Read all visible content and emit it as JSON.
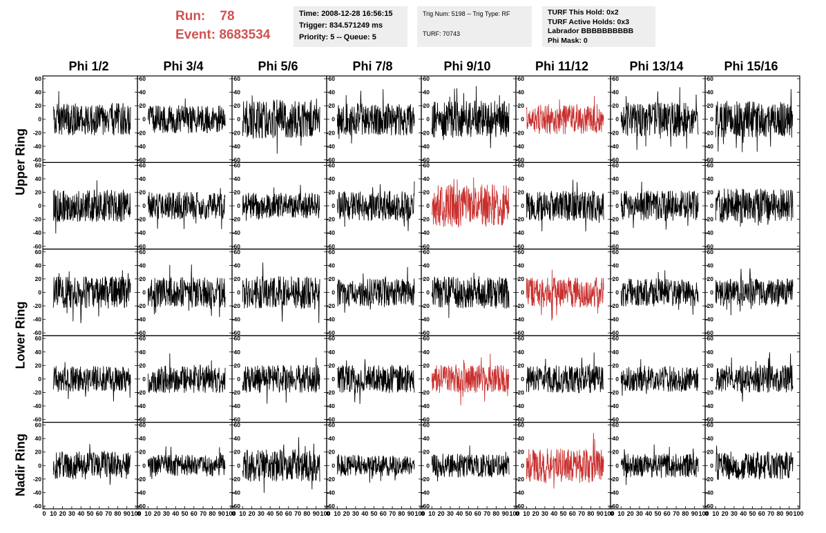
{
  "run": {
    "run_label": "Run:",
    "run_value": "78",
    "event_label": "Event:",
    "event_value": "8683534"
  },
  "info_time": {
    "time": "Time: 2008-12-28 16:56:15",
    "trigger": "Trigger: 834.571249 ms",
    "priority": "Priority: 5 -- Queue: 5"
  },
  "info_trig": {
    "trig": "Trig Num: 5198 -- Trig Type: RF",
    "turf": "TURF: 70743"
  },
  "info_turf": {
    "this_hold": "TURF This Hold: 0x2",
    "active_holds": "TURF Active Holds: 0x3",
    "labrador": "Labrador BBBBBBBBBB",
    "phi_mask": "Phi Mask: 0"
  },
  "columns": [
    "Phi 1/2",
    "Phi 3/4",
    "Phi 5/6",
    "Phi 7/8",
    "Phi 9/10",
    "Phi 11/12",
    "Phi 13/14",
    "Phi 15/16"
  ],
  "rings": [
    {
      "label": "Upper Ring",
      "rows": 2
    },
    {
      "label": "Lower Ring",
      "rows": 2
    },
    {
      "label": "Nadir Ring",
      "rows": 1
    }
  ],
  "chart_data": {
    "type": "line",
    "description_rows": 5,
    "description_cols": 8,
    "xlim": [
      0,
      100
    ],
    "ylim": [
      -60,
      60
    ],
    "x_ticks": [
      "0",
      "10",
      "20",
      "30",
      "40",
      "50",
      "60",
      "70",
      "80",
      "90",
      "100"
    ],
    "y_ticks": [
      "-60",
      "-40",
      "-20",
      "0",
      "20",
      "40",
      "60"
    ],
    "highlight_color": "#c8302e",
    "trace_color": "#000000",
    "highlighted_panels": [
      [
        0,
        5
      ],
      [
        1,
        4
      ],
      [
        2,
        5
      ],
      [
        3,
        4
      ],
      [
        4,
        5
      ]
    ],
    "amplitudes": [
      [
        15,
        13,
        18,
        15,
        17,
        14,
        16,
        17
      ],
      [
        15,
        13,
        12,
        14,
        20,
        14,
        14,
        16
      ],
      [
        15,
        14,
        15,
        13,
        15,
        14,
        13,
        13
      ],
      [
        12,
        13,
        13,
        13,
        13,
        13,
        12,
        13
      ],
      [
        13,
        10,
        15,
        10,
        11,
        16,
        11,
        13
      ]
    ],
    "samples_per_trace": 260
  }
}
